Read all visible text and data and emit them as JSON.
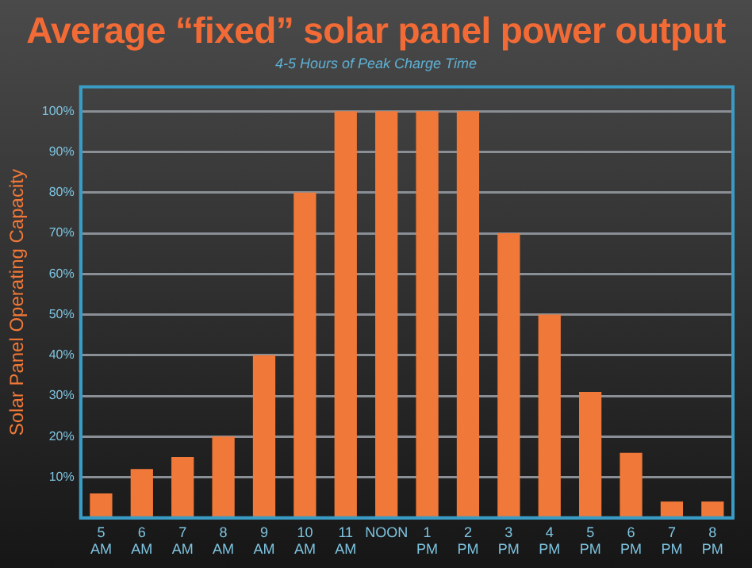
{
  "chart_data": {
    "type": "bar",
    "title": "Average “fixed” solar panel power output",
    "subtitle": "4-5 Hours of Peak Charge Time",
    "ylabel": "Solar Panel Operating Capacity",
    "categories": [
      "5 AM",
      "6 AM",
      "7 AM",
      "8 AM",
      "9 AM",
      "10 AM",
      "11 AM",
      "NOON",
      "1 PM",
      "2 PM",
      "3 PM",
      "4 PM",
      "5 PM",
      "6 PM",
      "7 PM",
      "8 PM"
    ],
    "values": [
      6,
      12,
      15,
      20,
      40,
      80,
      100,
      100,
      100,
      100,
      70,
      50,
      31,
      16,
      4,
      4
    ],
    "color": "#f07838",
    "ylim": [
      0,
      106
    ],
    "yticks": [
      {
        "value": 10,
        "label": "10%"
      },
      {
        "value": 20,
        "label": "20%"
      },
      {
        "value": 30,
        "label": "30%"
      },
      {
        "value": 40,
        "label": "40%"
      },
      {
        "value": 50,
        "label": "50%"
      },
      {
        "value": 60,
        "label": "60%"
      },
      {
        "value": 70,
        "label": "70%"
      },
      {
        "value": 80,
        "label": "80%"
      },
      {
        "value": 90,
        "label": "90%"
      },
      {
        "value": 100,
        "label": "100%"
      }
    ],
    "grid": "y",
    "legend": false
  }
}
